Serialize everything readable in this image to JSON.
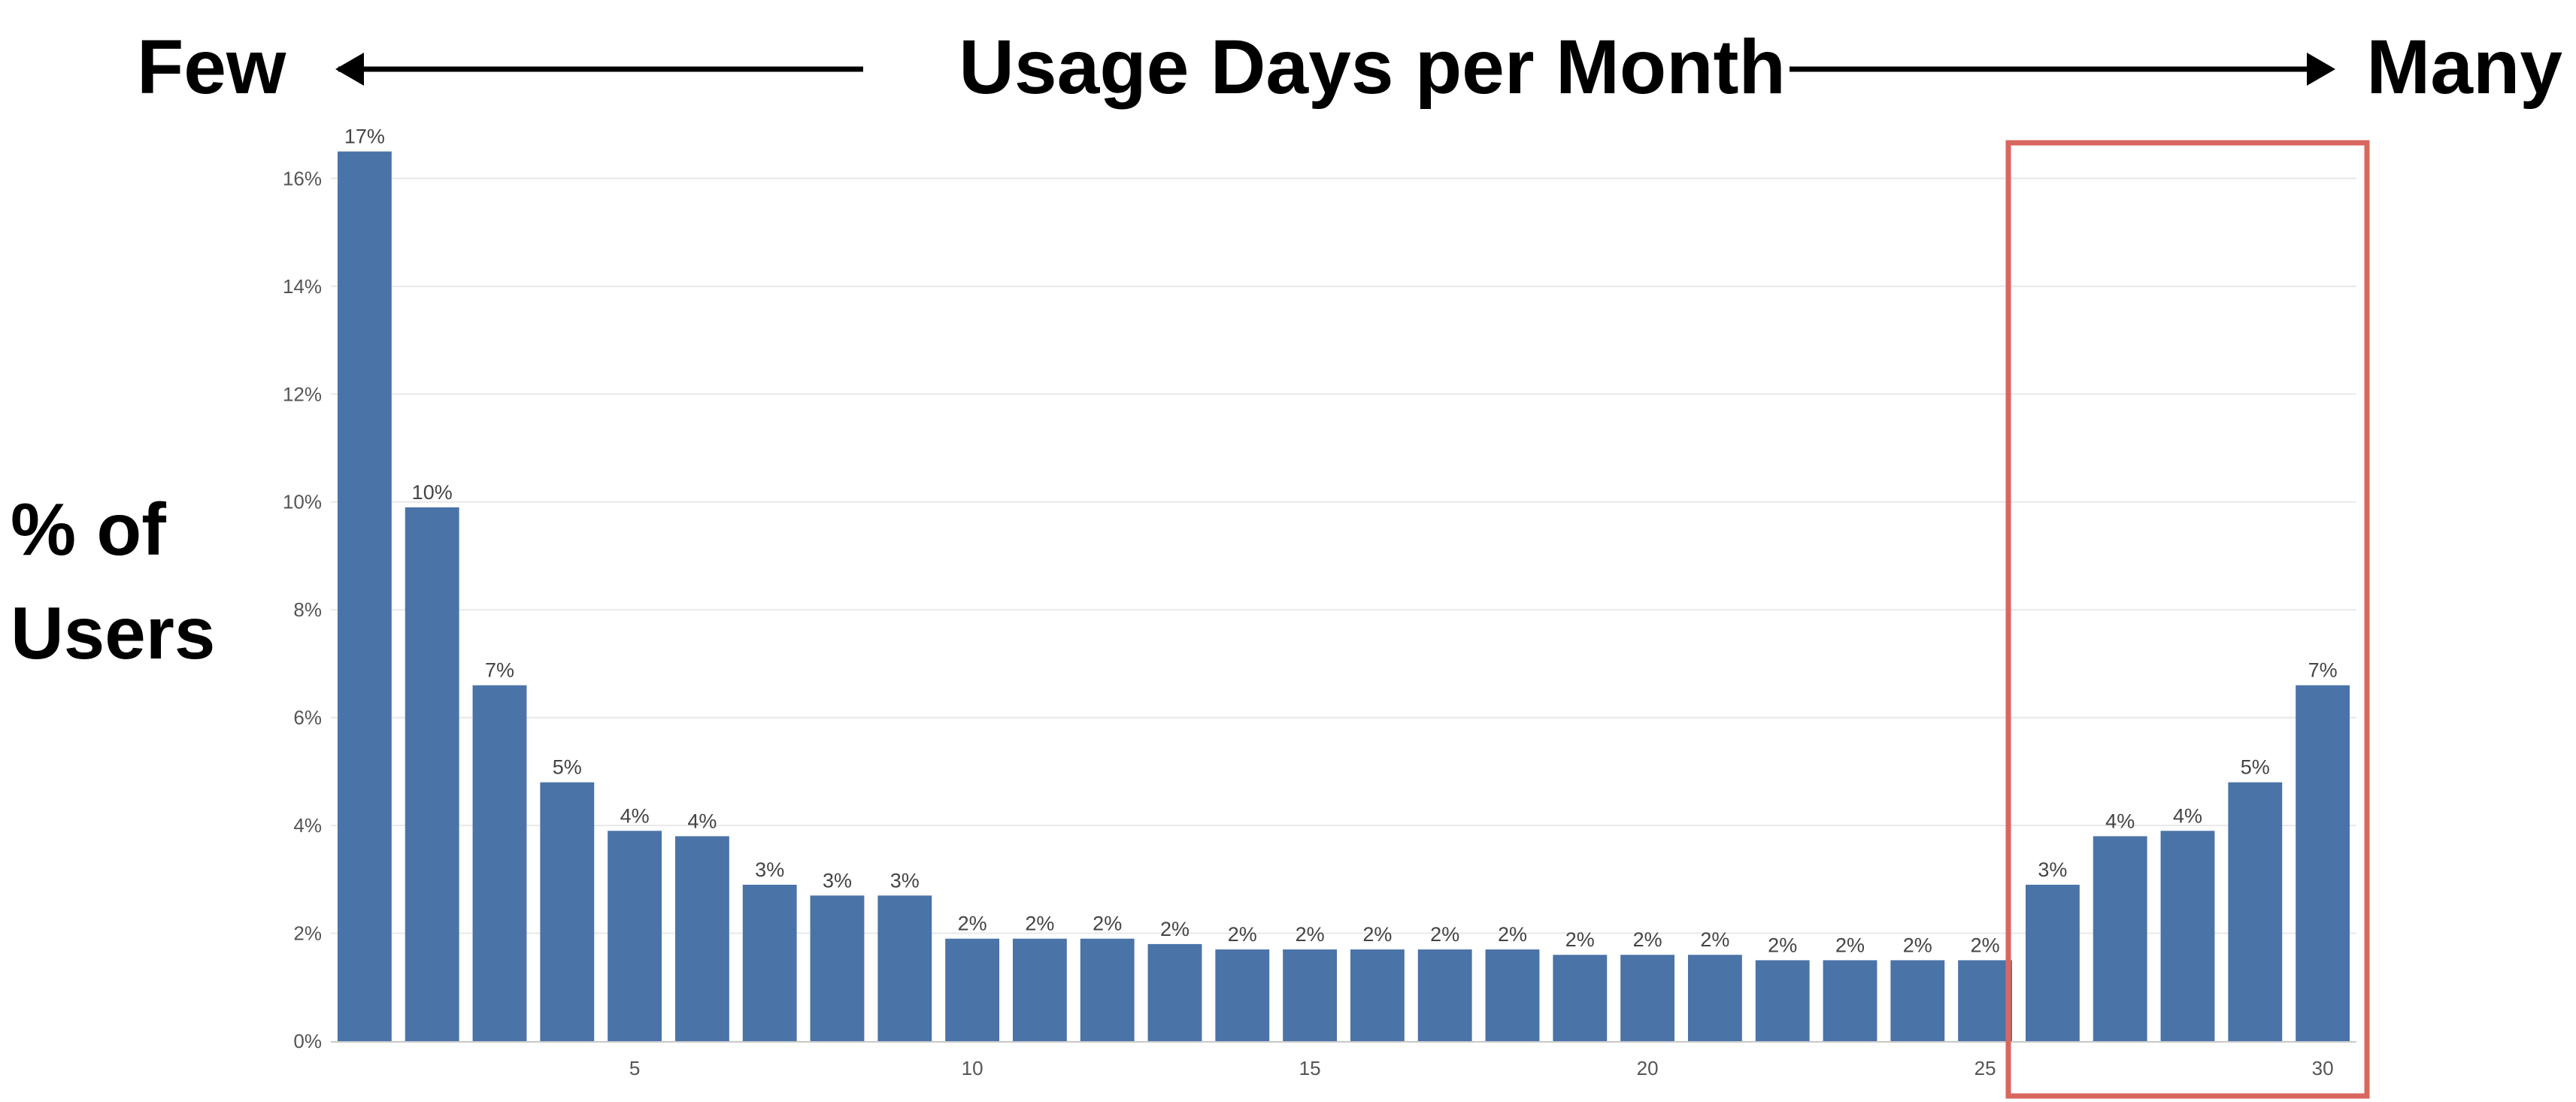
{
  "chart_data": {
    "type": "bar",
    "header": {
      "left_label": "Few",
      "center_label": "Usage Days per Month",
      "right_label": "Many"
    },
    "ylabel_lines": [
      "% of",
      "Users"
    ],
    "x": [
      1,
      2,
      3,
      4,
      5,
      6,
      7,
      8,
      9,
      10,
      11,
      12,
      13,
      14,
      15,
      16,
      17,
      18,
      19,
      20,
      21,
      22,
      23,
      24,
      25,
      26,
      27,
      28,
      29,
      30
    ],
    "values": [
      16.5,
      9.9,
      6.6,
      4.8,
      3.9,
      3.8,
      2.9,
      2.7,
      2.7,
      1.9,
      1.9,
      1.9,
      1.8,
      1.7,
      1.7,
      1.7,
      1.7,
      1.7,
      1.6,
      1.6,
      1.6,
      1.5,
      1.5,
      1.5,
      1.5,
      2.9,
      3.8,
      3.9,
      4.8,
      6.6
    ],
    "data_labels": [
      "17%",
      "10%",
      "7%",
      "5%",
      "4%",
      "4%",
      "3%",
      "3%",
      "3%",
      "2%",
      "2%",
      "2%",
      "2%",
      "2%",
      "2%",
      "2%",
      "2%",
      "2%",
      "2%",
      "2%",
      "2%",
      "2%",
      "2%",
      "2%",
      "2%",
      "3%",
      "4%",
      "4%",
      "5%",
      "7%"
    ],
    "x_ticks": [
      5,
      10,
      15,
      20,
      25,
      30
    ],
    "x_tick_labels": [
      "5",
      "10",
      "15",
      "20",
      "25",
      "30"
    ],
    "y_ticks": [
      0,
      2,
      4,
      6,
      8,
      10,
      12,
      14,
      16
    ],
    "y_tick_labels": [
      "0%",
      "2%",
      "4%",
      "6%",
      "8%",
      "10%",
      "12%",
      "14%",
      "16%"
    ],
    "ylim": [
      0,
      16.8
    ],
    "xlim": [
      0.5,
      30.5
    ],
    "grid": true,
    "highlight_range": [
      26,
      30
    ],
    "colors": {
      "bar": "#4a73a8",
      "highlight_box": "#d9675e",
      "grid": "#e8e8e8",
      "axis": "#c8c8c8"
    }
  }
}
